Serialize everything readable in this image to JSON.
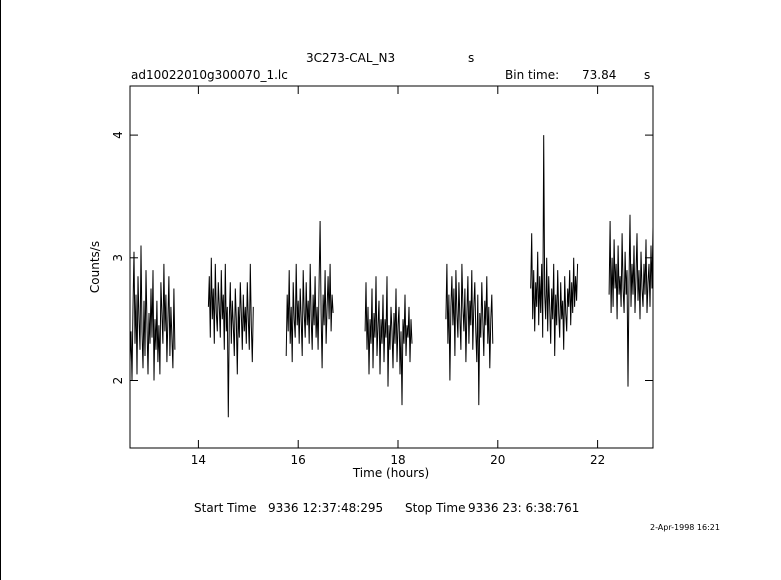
{
  "header": {
    "title": "3C273-CAL_N3",
    "title_unit": "s",
    "filename": "ad10022010g300070_1.lc",
    "bin_time_label": "Bin time:",
    "bin_time_value": "73.84",
    "bin_time_unit": "s"
  },
  "footer": {
    "start_label": "Start Time",
    "start_value": "9336 12:37:48:295",
    "stop_label": "Stop Time",
    "stop_value": "9336 23: 6:38:761",
    "date_stamp": "2-Apr-1998 16:21"
  },
  "chart_data": {
    "type": "line",
    "title": "3C273-CAL_N3",
    "xlabel": "Time (hours)",
    "ylabel": "Counts/s",
    "xlim": [
      12.63,
      23.11
    ],
    "ylim": [
      1.45,
      4.4
    ],
    "xticks": [
      14,
      16,
      18,
      20,
      22
    ],
    "yticks": [
      2,
      3,
      4
    ],
    "xtick_labels": [
      "14",
      "16",
      "18",
      "20",
      "22"
    ],
    "ytick_labels": [
      "2",
      "3",
      "4"
    ],
    "grid": false,
    "colors": {
      "line": "#000000",
      "axes": "#000000"
    },
    "series": [
      {
        "segments": [
          {
            "x": [
              12.63,
              12.65,
              12.67,
              12.69,
              12.71,
              12.73,
              12.75,
              12.77,
              12.79,
              12.81,
              12.83,
              12.85,
              12.87,
              12.89,
              12.91,
              12.93,
              12.95,
              12.97,
              12.99,
              13.01,
              13.03,
              13.05,
              13.07,
              13.09,
              13.11,
              13.13,
              13.15,
              13.17,
              13.19,
              13.21,
              13.23,
              13.25,
              13.27,
              13.29,
              13.31,
              13.33,
              13.35,
              13.37,
              13.39,
              13.41,
              13.43,
              13.45,
              13.47,
              13.49,
              13.51,
              13.53
            ],
            "y": [
              2.15,
              2.4,
              2.0,
              2.6,
              3.05,
              2.3,
              2.7,
              2.05,
              2.85,
              2.5,
              2.25,
              3.1,
              2.4,
              2.1,
              2.65,
              2.2,
              2.9,
              2.45,
              2.05,
              2.55,
              2.3,
              2.75,
              2.35,
              2.9,
              2.0,
              2.5,
              2.25,
              2.65,
              2.15,
              2.45,
              2.05,
              2.8,
              2.55,
              2.3,
              2.95,
              2.4,
              2.7,
              2.15,
              2.5,
              2.85,
              2.2,
              2.6,
              2.35,
              2.1,
              2.75,
              2.25
            ]
          },
          {
            "x": [
              14.2,
              14.22,
              14.24,
              14.26,
              14.28,
              14.3,
              14.32,
              14.34,
              14.36,
              14.38,
              14.4,
              14.42,
              14.44,
              14.46,
              14.48,
              14.5,
              14.52,
              14.54,
              14.56,
              14.58,
              14.6,
              14.62,
              14.64,
              14.66,
              14.68,
              14.7,
              14.72,
              14.74,
              14.76,
              14.78,
              14.8,
              14.82,
              14.84,
              14.86,
              14.88,
              14.9,
              14.92,
              14.94,
              14.96,
              14.98,
              15.0,
              15.02,
              15.04,
              15.06,
              15.08,
              15.1
            ],
            "y": [
              2.6,
              2.85,
              2.35,
              3.0,
              2.5,
              2.75,
              2.3,
              2.95,
              2.55,
              2.4,
              2.8,
              2.6,
              2.35,
              2.9,
              2.5,
              2.7,
              2.25,
              2.95,
              2.4,
              2.6,
              1.7,
              2.5,
              2.8,
              2.3,
              2.65,
              2.45,
              2.2,
              2.75,
              2.5,
              2.05,
              2.6,
              2.35,
              2.8,
              2.55,
              2.25,
              2.7,
              2.4,
              2.6,
              2.3,
              2.8,
              2.5,
              2.25,
              2.95,
              2.45,
              2.15,
              2.6
            ]
          },
          {
            "x": [
              15.76,
              15.78,
              15.8,
              15.82,
              15.84,
              15.86,
              15.88,
              15.9,
              15.92,
              15.94,
              15.96,
              15.98,
              16.0,
              16.02,
              16.04,
              16.06,
              16.08,
              16.1,
              16.12,
              16.14,
              16.16,
              16.18,
              16.2,
              16.22,
              16.24,
              16.26,
              16.28,
              16.3,
              16.32,
              16.34,
              16.36,
              16.38,
              16.4,
              16.42,
              16.44,
              16.46,
              16.48,
              16.5,
              16.52,
              16.54,
              16.56,
              16.58,
              16.6,
              16.62,
              16.64,
              16.66,
              16.68,
              16.7
            ],
            "y": [
              2.2,
              2.7,
              2.4,
              2.9,
              2.3,
              2.6,
              2.15,
              2.8,
              2.5,
              2.35,
              2.95,
              2.45,
              2.65,
              2.3,
              2.75,
              2.5,
              2.2,
              2.9,
              2.55,
              2.35,
              2.8,
              2.45,
              2.65,
              2.3,
              2.95,
              2.5,
              2.25,
              2.7,
              2.45,
              2.85,
              2.35,
              2.6,
              2.25,
              2.8,
              3.3,
              2.55,
              2.1,
              2.7,
              2.45,
              2.9,
              2.3,
              2.6,
              2.85,
              2.5,
              2.95,
              2.4,
              2.7,
              2.55
            ]
          },
          {
            "x": [
              17.34,
              17.36,
              17.38,
              17.4,
              17.42,
              17.44,
              17.46,
              17.48,
              17.5,
              17.52,
              17.54,
              17.56,
              17.58,
              17.6,
              17.62,
              17.64,
              17.66,
              17.68,
              17.7,
              17.72,
              17.74,
              17.76,
              17.78,
              17.8,
              17.82,
              17.84,
              17.86,
              17.88,
              17.9,
              17.92,
              17.94,
              17.96,
              17.98,
              18.0,
              18.02,
              18.04,
              18.06,
              18.08,
              18.1,
              18.12,
              18.14,
              18.16,
              18.18,
              18.2,
              18.22,
              18.24,
              18.26,
              18.28
            ],
            "y": [
              2.4,
              2.8,
              2.25,
              2.6,
              2.05,
              2.5,
              2.3,
              2.75,
              2.1,
              2.55,
              2.35,
              2.85,
              2.2,
              2.45,
              2.65,
              2.05,
              2.5,
              2.3,
              2.7,
              2.15,
              2.5,
              2.35,
              2.85,
              1.95,
              2.45,
              2.25,
              2.6,
              2.4,
              2.1,
              2.55,
              2.3,
              2.75,
              2.15,
              2.45,
              2.6,
              2.05,
              2.4,
              1.8,
              2.5,
              2.3,
              2.7,
              2.2,
              2.45,
              2.35,
              2.6,
              2.15,
              2.5,
              2.3
            ]
          },
          {
            "x": [
              18.96,
              18.98,
              19.0,
              19.02,
              19.04,
              19.06,
              19.08,
              19.1,
              19.12,
              19.14,
              19.16,
              19.18,
              19.2,
              19.22,
              19.24,
              19.26,
              19.28,
              19.3,
              19.32,
              19.34,
              19.36,
              19.38,
              19.4,
              19.42,
              19.44,
              19.46,
              19.48,
              19.5,
              19.52,
              19.54,
              19.56,
              19.58,
              19.6,
              19.62,
              19.64,
              19.66,
              19.68,
              19.7,
              19.72,
              19.74,
              19.76,
              19.78,
              19.8,
              19.82,
              19.84,
              19.86,
              19.88,
              19.9
            ],
            "y": [
              2.5,
              2.95,
              2.3,
              2.7,
              2.0,
              2.6,
              2.85,
              2.45,
              2.75,
              2.2,
              2.9,
              2.55,
              2.35,
              2.8,
              2.5,
              2.25,
              2.95,
              2.6,
              2.4,
              2.75,
              2.15,
              2.55,
              2.85,
              2.3,
              2.65,
              2.45,
              2.9,
              2.25,
              2.6,
              2.8,
              2.4,
              2.15,
              2.7,
              1.8,
              2.55,
              2.35,
              2.8,
              2.5,
              2.2,
              2.65,
              2.45,
              2.85,
              2.3,
              2.6,
              2.1,
              2.5,
              2.7,
              2.3
            ]
          },
          {
            "x": [
              20.66,
              20.68,
              20.7,
              20.72,
              20.74,
              20.76,
              20.78,
              20.8,
              20.82,
              20.84,
              20.86,
              20.88,
              20.9,
              20.92,
              20.94,
              20.96,
              20.98,
              21.0,
              21.02,
              21.04,
              21.06,
              21.08,
              21.1,
              21.12,
              21.14,
              21.16,
              21.18,
              21.2,
              21.22,
              21.24,
              21.26,
              21.28,
              21.3,
              21.32,
              21.34,
              21.36,
              21.38,
              21.4,
              21.42,
              21.44,
              21.46,
              21.48,
              21.5,
              21.52,
              21.54,
              21.56,
              21.58,
              21.6
            ],
            "y": [
              2.75,
              3.2,
              2.5,
              2.9,
              2.4,
              2.8,
              2.6,
              3.05,
              2.45,
              2.85,
              2.55,
              2.95,
              2.35,
              4.0,
              2.7,
              2.5,
              3.0,
              2.4,
              2.85,
              2.6,
              2.3,
              2.75,
              2.5,
              2.95,
              2.2,
              2.7,
              2.45,
              2.9,
              2.55,
              2.35,
              2.8,
              2.5,
              2.65,
              2.25,
              2.85,
              2.55,
              2.4,
              2.75,
              2.6,
              2.9,
              2.45,
              2.8,
              2.55,
              3.0,
              2.6,
              2.85,
              2.65,
              2.95
            ]
          },
          {
            "x": [
              22.23,
              22.25,
              22.27,
              22.29,
              22.31,
              22.33,
              22.35,
              22.37,
              22.39,
              22.41,
              22.43,
              22.45,
              22.47,
              22.49,
              22.51,
              22.53,
              22.55,
              22.57,
              22.59,
              22.61,
              22.63,
              22.65,
              22.67,
              22.69,
              22.71,
              22.73,
              22.75,
              22.77,
              22.79,
              22.81,
              22.83,
              22.85,
              22.87,
              22.89,
              22.91,
              22.93,
              22.95,
              22.97,
              22.99,
              23.01,
              23.03,
              23.05,
              23.07,
              23.09,
              23.11
            ],
            "y": [
              2.7,
              3.3,
              2.55,
              3.0,
              2.6,
              3.15,
              2.75,
              2.95,
              2.5,
              3.1,
              2.7,
              2.85,
              2.6,
              3.2,
              2.75,
              2.55,
              3.05,
              2.7,
              2.9,
              1.95,
              2.8,
              3.35,
              2.6,
              2.95,
              2.7,
              3.1,
              2.55,
              2.85,
              3.2,
              2.65,
              2.9,
              2.5,
              3.05,
              2.75,
              2.6,
              2.95,
              2.7,
              3.15,
              2.55,
              2.8,
              2.95,
              2.6,
              3.1,
              2.75,
              3.25
            ]
          }
        ]
      }
    ]
  }
}
